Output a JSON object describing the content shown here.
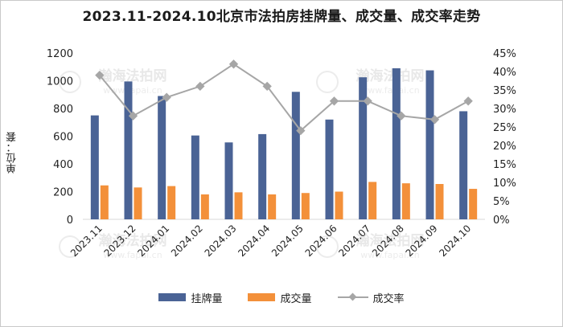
{
  "title": "2023.11-2024.10北京市法拍房挂牌量、成交量、成交率走势",
  "ylabel": "单位：套",
  "watermark": "瀚海法拍网 www.fapai.cn",
  "colors": {
    "listing": "#4a6395",
    "deals": "#f3903a",
    "rate": "#a6a6a6"
  },
  "chart_data": {
    "type": "bar",
    "categories": [
      "2023.11",
      "2023.12",
      "2024.01",
      "2024.02",
      "2024.03",
      "2024.04",
      "2024.05",
      "2024.06",
      "2024.07",
      "2024.08",
      "2024.09",
      "2024.10"
    ],
    "series": [
      {
        "name": "挂牌量",
        "type": "bar",
        "axis": "left",
        "values": [
          750,
          995,
          890,
          605,
          555,
          615,
          920,
          720,
          1025,
          1090,
          1075,
          780
        ]
      },
      {
        "name": "成交量",
        "type": "bar",
        "axis": "left",
        "values": [
          245,
          230,
          240,
          180,
          195,
          180,
          190,
          200,
          270,
          260,
          255,
          220
        ]
      },
      {
        "name": "成交率",
        "type": "line",
        "axis": "right",
        "unit": "%",
        "values": [
          39,
          28,
          33,
          36,
          42,
          36,
          24,
          32,
          32,
          28,
          27,
          32
        ]
      }
    ],
    "ylim": [
      0,
      1200
    ],
    "yticks": [
      0,
      200,
      400,
      600,
      800,
      1000,
      1200
    ],
    "y2lim": [
      0,
      45
    ],
    "y2ticks": [
      "0%",
      "5%",
      "10%",
      "15%",
      "20%",
      "25%",
      "30%",
      "35%",
      "40%",
      "45%"
    ],
    "legend": [
      "挂牌量",
      "成交量",
      "成交率"
    ],
    "legend_position": "bottom",
    "grid": false
  }
}
